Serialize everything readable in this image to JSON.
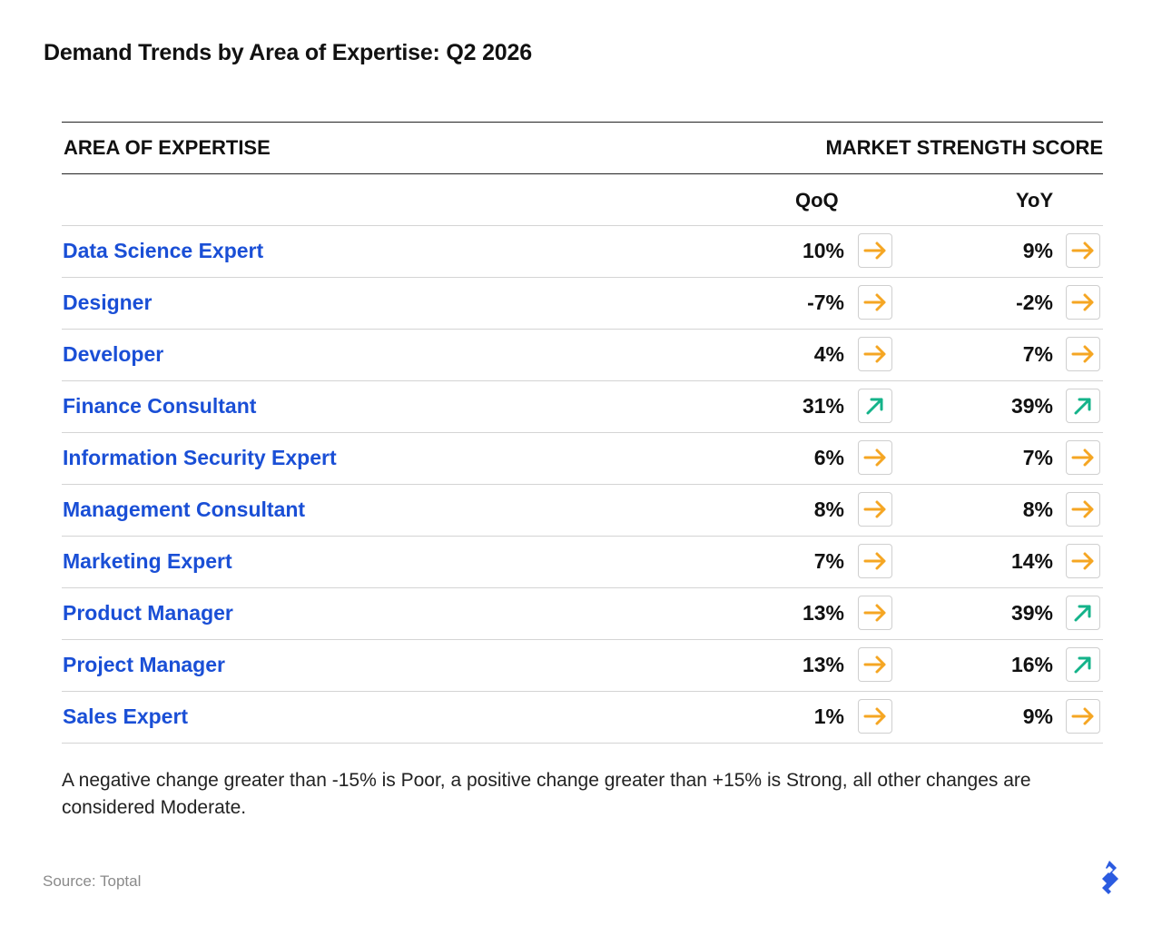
{
  "title": "Demand Trends by Area of Expertise: Q2 2026",
  "table": {
    "col_area": "AREA OF EXPERTISE",
    "col_score": "MARKET STRENGTH SCORE",
    "col_qoq": "QoQ",
    "col_yoy": "YoY",
    "rows": [
      {
        "area": "Data Science Expert",
        "qoq": "10%",
        "qoq_icon": "arrow-right-icon",
        "yoy": "9%",
        "yoy_icon": "arrow-right-icon"
      },
      {
        "area": "Designer",
        "qoq": "-7%",
        "qoq_icon": "arrow-right-icon",
        "yoy": "-2%",
        "yoy_icon": "arrow-right-icon"
      },
      {
        "area": "Developer",
        "qoq": "4%",
        "qoq_icon": "arrow-right-icon",
        "yoy": "7%",
        "yoy_icon": "arrow-right-icon"
      },
      {
        "area": "Finance Consultant",
        "qoq": "31%",
        "qoq_icon": "arrow-up-right-icon",
        "yoy": "39%",
        "yoy_icon": "arrow-up-right-icon"
      },
      {
        "area": "Information Security Expert",
        "qoq": "6%",
        "qoq_icon": "arrow-right-icon",
        "yoy": "7%",
        "yoy_icon": "arrow-right-icon"
      },
      {
        "area": "Management Consultant",
        "qoq": "8%",
        "qoq_icon": "arrow-right-icon",
        "yoy": "8%",
        "yoy_icon": "arrow-right-icon"
      },
      {
        "area": "Marketing Expert",
        "qoq": "7%",
        "qoq_icon": "arrow-right-icon",
        "yoy": "14%",
        "yoy_icon": "arrow-right-icon"
      },
      {
        "area": "Product Manager",
        "qoq": "13%",
        "qoq_icon": "arrow-right-icon",
        "yoy": "39%",
        "yoy_icon": "arrow-up-right-icon"
      },
      {
        "area": "Project Manager",
        "qoq": "13%",
        "qoq_icon": "arrow-right-icon",
        "yoy": "16%",
        "yoy_icon": "arrow-up-right-icon"
      },
      {
        "area": "Sales Expert",
        "qoq": "1%",
        "qoq_icon": "arrow-right-icon",
        "yoy": "9%",
        "yoy_icon": "arrow-right-icon"
      }
    ]
  },
  "note": "A negative change greater than -15% is Poor, a positive change greater than +15% is Strong, all other changes are considered Moderate.",
  "source": "Source: Toptal",
  "colors": {
    "area_link": "#1a4fd6",
    "moderate_arrow": "#f5a623",
    "strong_arrow": "#14b38a",
    "logo": "#2b5be0"
  }
}
